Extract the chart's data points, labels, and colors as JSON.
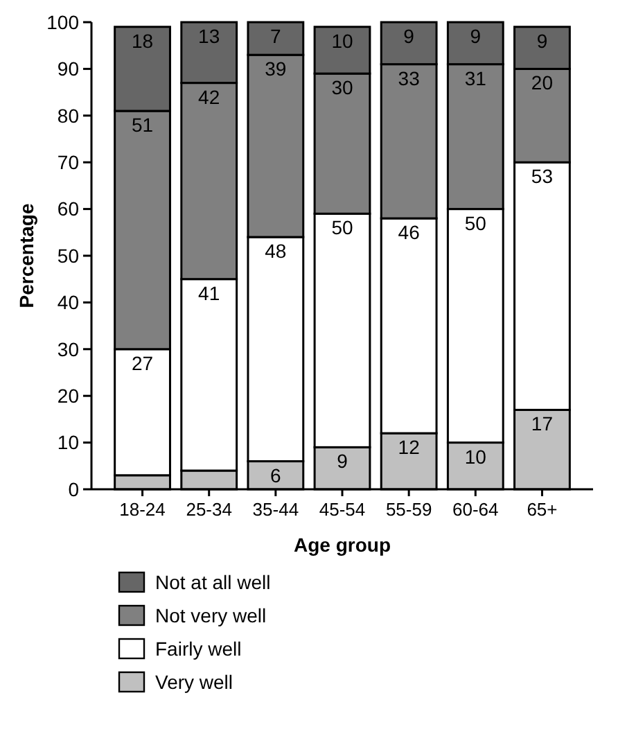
{
  "chart_data": {
    "type": "bar",
    "stacked": true,
    "xlabel": "Age group",
    "ylabel": "Percentage",
    "categories": [
      "18-24",
      "25-34",
      "35-44",
      "45-54",
      "55-59",
      "60-64",
      "65+"
    ],
    "ylim": [
      0,
      100
    ],
    "yticks": [
      0,
      10,
      20,
      30,
      40,
      50,
      60,
      70,
      80,
      90,
      100
    ],
    "legend": "bottom",
    "grid": false,
    "series": [
      {
        "name": "Very well",
        "color": "#c0c0c0",
        "values": [
          3,
          4,
          6,
          9,
          12,
          10,
          17
        ],
        "value_labels": [
          null,
          null,
          "6",
          "9",
          "12",
          "10",
          "17"
        ]
      },
      {
        "name": "Fairly well",
        "color": "#ffffff",
        "values": [
          27,
          41,
          48,
          50,
          46,
          50,
          53
        ],
        "value_labels": [
          "27",
          "41",
          "48",
          "50",
          "46",
          "50",
          "53"
        ]
      },
      {
        "name": "Not very well",
        "color": "#808080",
        "values": [
          51,
          42,
          39,
          30,
          33,
          31,
          20
        ],
        "value_labels": [
          "51",
          "42",
          "39",
          "30",
          "33",
          "31",
          "20"
        ]
      },
      {
        "name": "Not at all well",
        "color": "#666666",
        "values": [
          18,
          13,
          7,
          10,
          9,
          9,
          9
        ],
        "value_labels": [
          "18",
          "13",
          "7",
          "10",
          "9",
          "9",
          "9"
        ]
      }
    ]
  }
}
